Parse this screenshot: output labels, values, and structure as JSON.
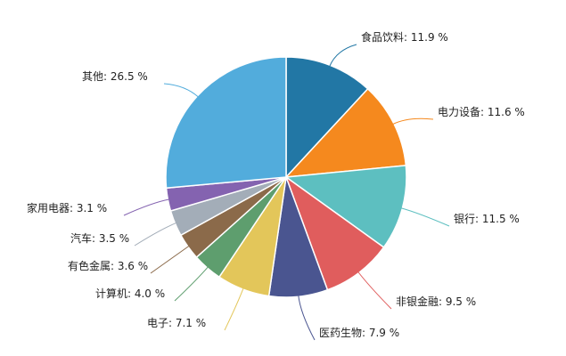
{
  "chart_data": {
    "type": "pie",
    "unit": "%",
    "slices": [
      {
        "name": "食品饮料",
        "value": 11.9,
        "label": "食品饮料: 11.9 %",
        "color": "#2277a5"
      },
      {
        "name": "电力设备",
        "value": 11.6,
        "label": "电力设备: 11.6 %",
        "color": "#f5891e"
      },
      {
        "name": "银行",
        "value": 11.5,
        "label": "银行: 11.5 %",
        "color": "#5dbfc0"
      },
      {
        "name": "非银金融",
        "value": 9.5,
        "label": "非银金融: 9.5 %",
        "color": "#e05d5d"
      },
      {
        "name": "医药生物",
        "value": 7.9,
        "label": "医药生物: 7.9 %",
        "color": "#4a5590"
      },
      {
        "name": "电子",
        "value": 7.1,
        "label": "电子: 7.1 %",
        "color": "#e3c65a"
      },
      {
        "name": "计算机",
        "value": 4.0,
        "label": "计算机: 4.0 %",
        "color": "#5e9e6e"
      },
      {
        "name": "有色金属",
        "value": 3.6,
        "label": "有色金属: 3.6 %",
        "color": "#8b6a4a"
      },
      {
        "name": "汽车",
        "value": 3.5,
        "label": "汽车: 3.5 %",
        "color": "#a3adb8"
      },
      {
        "name": "家用电器",
        "value": 3.1,
        "label": "家用电器: 3.1 %",
        "color": "#8463b0"
      },
      {
        "name": "其他",
        "value": 26.5,
        "label": "其他: 26.5 %",
        "color": "#52acdc"
      }
    ]
  }
}
